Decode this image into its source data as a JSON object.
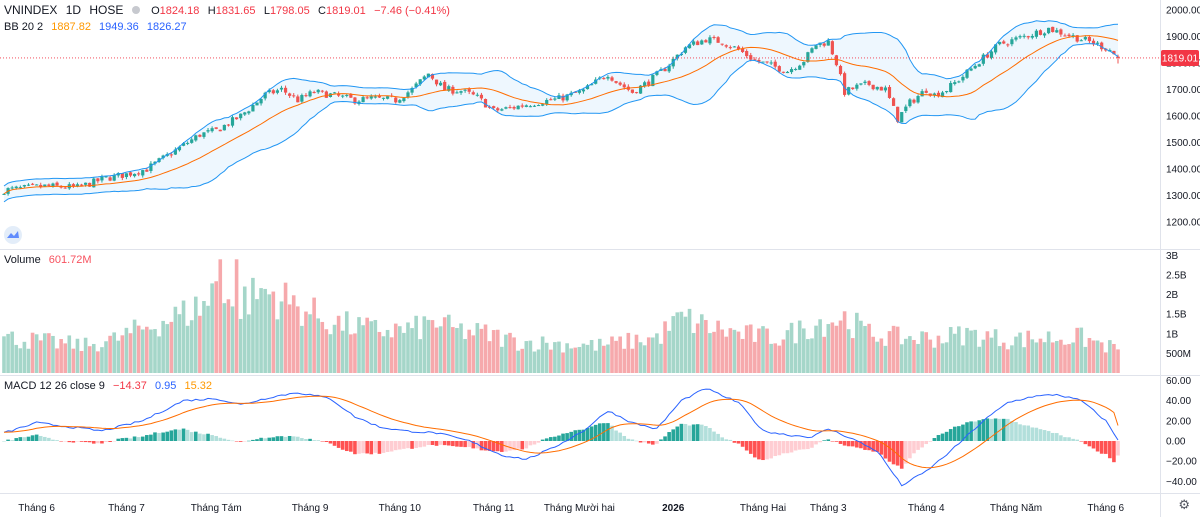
{
  "header": {
    "symbol": "VNINDEX",
    "interval": "1D",
    "exchange": "HOSE",
    "o_label": "O",
    "open": "1824.18",
    "h_label": "H",
    "high": "1831.65",
    "l_label": "L",
    "low": "1798.05",
    "c_label": "C",
    "close": "1819.01",
    "change": "−7.46 (−0.41%)"
  },
  "bb": {
    "label": "BB 20 2",
    "basis": "1887.82",
    "upper": "1949.36",
    "lower": "1826.27"
  },
  "volume": {
    "label": "Volume",
    "value": "601.72M"
  },
  "macd": {
    "label": "MACD 12 26 close 9",
    "hist": "−14.37",
    "macd": "0.95",
    "signal": "15.32"
  },
  "price_tag": "1819.01",
  "colors": {
    "up": "#26a69a",
    "down": "#ef5350",
    "basis": "#ff6d00",
    "band": "#2196f3",
    "macd": "#2962ff",
    "signal": "#ff6d00"
  },
  "icons": [
    "tradingview-logo-icon",
    "gear-icon"
  ],
  "chart_data": {
    "type": "candlestick",
    "price_axis": {
      "ticks": [
        2000,
        1900,
        1800,
        1700,
        1600,
        1500,
        1400,
        1300,
        1200
      ],
      "labels": [
        "2000.00",
        "1900.00",
        "1800.00",
        "1700.00",
        "1600.00",
        "1500.00",
        "1400.00",
        "1300.00",
        "1200.00"
      ]
    },
    "volume_axis": {
      "ticks": [
        3000,
        2500,
        2000,
        1500,
        1000,
        500
      ],
      "labels": [
        "3B",
        "2.5B",
        "2B",
        "1.5B",
        "1B",
        "500M"
      ]
    },
    "macd_axis": {
      "ticks": [
        60,
        40,
        20,
        0,
        -20,
        -40
      ],
      "labels": [
        "60.00",
        "40.00",
        "20.00",
        "0.00",
        "−20.00",
        "−40.00"
      ]
    },
    "x_labels": [
      {
        "i": 8,
        "text": "Tháng 6"
      },
      {
        "i": 30,
        "text": "Tháng 7"
      },
      {
        "i": 52,
        "text": "Tháng Tám"
      },
      {
        "i": 75,
        "text": "Tháng 9"
      },
      {
        "i": 97,
        "text": "Tháng 10"
      },
      {
        "i": 120,
        "text": "Tháng 11"
      },
      {
        "i": 141,
        "text": "Tháng Mười hai"
      },
      {
        "i": 164,
        "text": "2026",
        "bold": true
      },
      {
        "i": 186,
        "text": "Tháng Hai"
      },
      {
        "i": 202,
        "text": "Tháng 3"
      },
      {
        "i": 226,
        "text": "Tháng 4"
      },
      {
        "i": 248,
        "text": "Tháng Năm"
      },
      {
        "i": 270,
        "text": "Tháng 6"
      }
    ],
    "close_anchors": [
      [
        0,
        1320
      ],
      [
        10,
        1335
      ],
      [
        18,
        1330
      ],
      [
        25,
        1365
      ],
      [
        30,
        1380
      ],
      [
        35,
        1400
      ],
      [
        42,
        1470
      ],
      [
        48,
        1530
      ],
      [
        52,
        1545
      ],
      [
        58,
        1600
      ],
      [
        64,
        1680
      ],
      [
        68,
        1700
      ],
      [
        72,
        1660
      ],
      [
        76,
        1690
      ],
      [
        80,
        1680
      ],
      [
        86,
        1660
      ],
      [
        90,
        1665
      ],
      [
        96,
        1660
      ],
      [
        100,
        1700
      ],
      [
        104,
        1760
      ],
      [
        108,
        1700
      ],
      [
        112,
        1695
      ],
      [
        116,
        1670
      ],
      [
        120,
        1620
      ],
      [
        124,
        1630
      ],
      [
        130,
        1650
      ],
      [
        136,
        1665
      ],
      [
        142,
        1695
      ],
      [
        148,
        1760
      ],
      [
        150,
        1730
      ],
      [
        154,
        1690
      ],
      [
        158,
        1730
      ],
      [
        162,
        1780
      ],
      [
        167,
        1860
      ],
      [
        172,
        1890
      ],
      [
        176,
        1880
      ],
      [
        180,
        1850
      ],
      [
        184,
        1810
      ],
      [
        188,
        1790
      ],
      [
        192,
        1770
      ],
      [
        196,
        1810
      ],
      [
        199,
        1870
      ],
      [
        202,
        1880
      ],
      [
        204,
        1800
      ],
      [
        206,
        1690
      ],
      [
        209,
        1710
      ],
      [
        212,
        1720
      ],
      [
        216,
        1700
      ],
      [
        219,
        1590
      ],
      [
        222,
        1650
      ],
      [
        226,
        1700
      ],
      [
        228,
        1680
      ],
      [
        231,
        1700
      ],
      [
        235,
        1750
      ],
      [
        240,
        1820
      ],
      [
        244,
        1870
      ],
      [
        248,
        1890
      ],
      [
        252,
        1910
      ],
      [
        256,
        1930
      ],
      [
        260,
        1910
      ],
      [
        264,
        1890
      ],
      [
        268,
        1870
      ],
      [
        271,
        1850
      ],
      [
        273,
        1819
      ]
    ],
    "volume_anchors": [
      [
        0,
        900
      ],
      [
        10,
        800
      ],
      [
        20,
        700
      ],
      [
        27,
        850
      ],
      [
        33,
        1100
      ],
      [
        38,
        1300
      ],
      [
        44,
        1500
      ],
      [
        50,
        1800
      ],
      [
        53,
        2600
      ],
      [
        56,
        1700
      ],
      [
        60,
        1900
      ],
      [
        64,
        2100
      ],
      [
        68,
        1900
      ],
      [
        72,
        1700
      ],
      [
        76,
        1500
      ],
      [
        80,
        1300
      ],
      [
        90,
        1100
      ],
      [
        100,
        1100
      ],
      [
        106,
        1300
      ],
      [
        110,
        1100
      ],
      [
        118,
        1000
      ],
      [
        126,
        800
      ],
      [
        134,
        750
      ],
      [
        146,
        700
      ],
      [
        160,
        900
      ],
      [
        166,
        1400
      ],
      [
        172,
        1200
      ],
      [
        180,
        1000
      ],
      [
        190,
        900
      ],
      [
        200,
        1300
      ],
      [
        206,
        1400
      ],
      [
        212,
        1000
      ],
      [
        220,
        900
      ],
      [
        230,
        900
      ],
      [
        236,
        1000
      ],
      [
        246,
        850
      ],
      [
        256,
        900
      ],
      [
        264,
        900
      ],
      [
        273,
        602
      ]
    ],
    "macd_anchors": [
      [
        0,
        8
      ],
      [
        8,
        18
      ],
      [
        16,
        14
      ],
      [
        24,
        10
      ],
      [
        34,
        20
      ],
      [
        44,
        40
      ],
      [
        52,
        42
      ],
      [
        58,
        36
      ],
      [
        66,
        44
      ],
      [
        72,
        48
      ],
      [
        80,
        42
      ],
      [
        86,
        24
      ],
      [
        92,
        14
      ],
      [
        98,
        10
      ],
      [
        106,
        8
      ],
      [
        114,
        0
      ],
      [
        122,
        -14
      ],
      [
        128,
        -18
      ],
      [
        134,
        -8
      ],
      [
        142,
        10
      ],
      [
        148,
        30
      ],
      [
        154,
        18
      ],
      [
        160,
        12
      ],
      [
        166,
        40
      ],
      [
        172,
        52
      ],
      [
        180,
        38
      ],
      [
        186,
        10
      ],
      [
        192,
        6
      ],
      [
        198,
        4
      ],
      [
        202,
        12
      ],
      [
        208,
        2
      ],
      [
        214,
        -10
      ],
      [
        220,
        -44
      ],
      [
        226,
        -30
      ],
      [
        232,
        -10
      ],
      [
        240,
        20
      ],
      [
        246,
        38
      ],
      [
        252,
        44
      ],
      [
        258,
        46
      ],
      [
        264,
        40
      ],
      [
        270,
        20
      ],
      [
        273,
        1
      ]
    ]
  }
}
